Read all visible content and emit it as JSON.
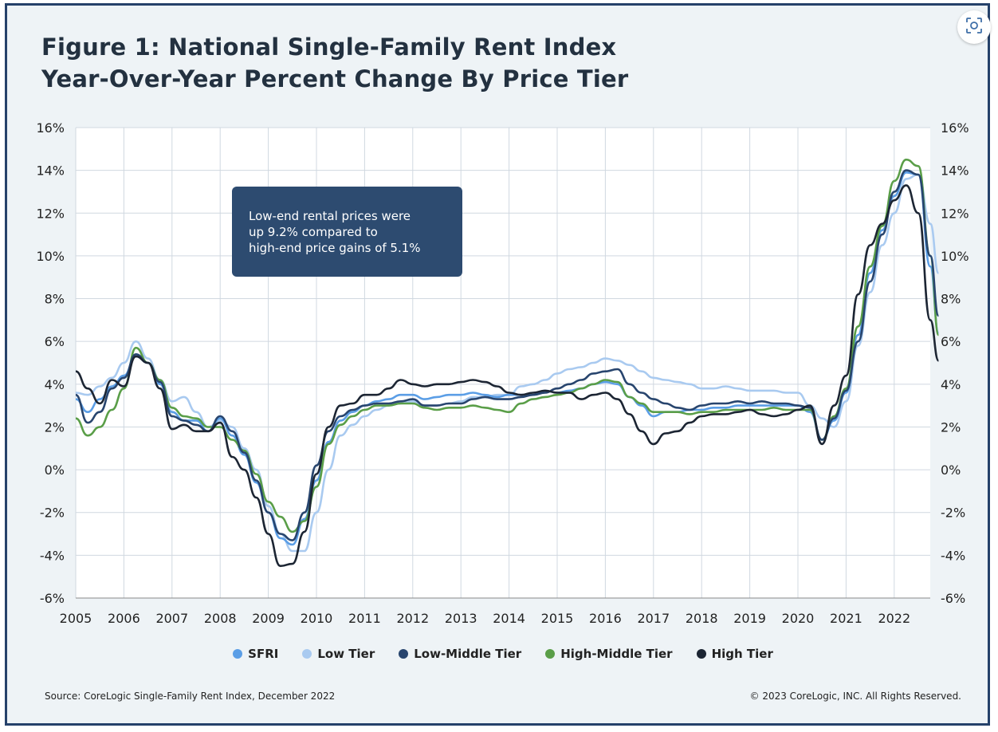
{
  "title": {
    "line1": "Figure 1: National Single-Family Rent Index",
    "line2": "Year-Over-Year Percent Change By Price Tier"
  },
  "annotation": {
    "line1": "Low-end rental prices were",
    "line2": "up 9.2% compared to",
    "line3": "high-end price gains of 5.1%"
  },
  "source": "Source: CoreLogic Single-Family Rent Index, December 2022",
  "copyright": "© 2023 CoreLogic, INC. All Rights Reserved.",
  "colors": {
    "frame_border": "#25416a",
    "background": "#eef3f6",
    "plot_bg": "#ffffff",
    "grid": "#d0d8e0",
    "annotation_bg": "#2d4b70"
  },
  "icons": {
    "lens": "search-lens-icon"
  },
  "chart_data": {
    "type": "line",
    "title": "Figure 1: National Single-Family Rent Index Year-Over-Year Percent Change By Price Tier",
    "xlabel": "",
    "ylabel": "",
    "xlim": [
      2005,
      2023
    ],
    "ylim": [
      -6,
      16
    ],
    "x_ticks": [
      "2005",
      "2006",
      "2007",
      "2008",
      "2009",
      "2010",
      "2011",
      "2012",
      "2013",
      "2014",
      "2015",
      "2016",
      "2017",
      "2018",
      "2019",
      "2020",
      "2021",
      "2022"
    ],
    "y_ticks": [
      "-6%",
      "-4%",
      "-2%",
      "0%",
      "2%",
      "4%",
      "6%",
      "8%",
      "10%",
      "12%",
      "14%",
      "16%"
    ],
    "y_tick_values": [
      -6,
      -4,
      -2,
      0,
      2,
      4,
      6,
      8,
      10,
      12,
      14,
      16
    ],
    "grid": true,
    "legend_position": "bottom",
    "series": [
      {
        "name": "SFRI",
        "color": "#5b9ee6",
        "x": [
          2005.0,
          2005.25,
          2005.5,
          2005.75,
          2006.0,
          2006.25,
          2006.5,
          2006.75,
          2007.0,
          2007.25,
          2007.5,
          2007.75,
          2008.0,
          2008.25,
          2008.5,
          2008.75,
          2009.0,
          2009.25,
          2009.5,
          2009.75,
          2010.0,
          2010.25,
          2010.5,
          2010.75,
          2011.0,
          2011.25,
          2011.5,
          2011.75,
          2012.0,
          2012.25,
          2012.5,
          2012.75,
          2013.0,
          2013.25,
          2013.5,
          2013.75,
          2014.0,
          2014.25,
          2014.5,
          2014.75,
          2015.0,
          2015.25,
          2015.5,
          2015.75,
          2016.0,
          2016.25,
          2016.5,
          2016.75,
          2017.0,
          2017.25,
          2017.5,
          2017.75,
          2018.0,
          2018.25,
          2018.5,
          2018.75,
          2019.0,
          2019.25,
          2019.5,
          2019.75,
          2020.0,
          2020.25,
          2020.5,
          2020.75,
          2021.0,
          2021.25,
          2021.5,
          2021.75,
          2022.0,
          2022.25,
          2022.5,
          2022.75,
          2022.92
        ],
        "values": [
          3.3,
          2.7,
          3.3,
          3.9,
          4.4,
          5.3,
          5.0,
          4.0,
          2.7,
          2.3,
          2.3,
          1.8,
          2.4,
          1.6,
          0.7,
          -0.6,
          -2.0,
          -3.2,
          -3.5,
          -2.3,
          -0.5,
          1.3,
          2.3,
          2.7,
          3.0,
          3.2,
          3.3,
          3.5,
          3.5,
          3.3,
          3.4,
          3.5,
          3.5,
          3.6,
          3.5,
          3.4,
          3.5,
          3.5,
          3.5,
          3.7,
          3.6,
          3.7,
          3.8,
          4.0,
          4.1,
          4.0,
          3.4,
          3.0,
          2.5,
          2.7,
          2.7,
          2.8,
          2.8,
          2.9,
          2.9,
          3.0,
          3.0,
          3.0,
          3.0,
          3.0,
          3.0,
          2.7,
          1.4,
          2.3,
          3.6,
          6.3,
          9.2,
          11.2,
          12.8,
          13.9,
          13.8,
          9.5,
          6.4
        ]
      },
      {
        "name": "Low Tier",
        "color": "#a9caf0",
        "x": [
          2005.0,
          2005.25,
          2005.5,
          2005.75,
          2006.0,
          2006.25,
          2006.5,
          2006.75,
          2007.0,
          2007.25,
          2007.5,
          2007.75,
          2008.0,
          2008.25,
          2008.5,
          2008.75,
          2009.0,
          2009.25,
          2009.5,
          2009.75,
          2010.0,
          2010.25,
          2010.5,
          2010.75,
          2011.0,
          2011.25,
          2011.5,
          2011.75,
          2012.0,
          2012.25,
          2012.5,
          2012.75,
          2013.0,
          2013.25,
          2013.5,
          2013.75,
          2014.0,
          2014.25,
          2014.5,
          2014.75,
          2015.0,
          2015.25,
          2015.5,
          2015.75,
          2016.0,
          2016.25,
          2016.5,
          2016.75,
          2017.0,
          2017.25,
          2017.5,
          2017.75,
          2018.0,
          2018.25,
          2018.5,
          2018.75,
          2019.0,
          2019.25,
          2019.5,
          2019.75,
          2020.0,
          2020.25,
          2020.5,
          2020.75,
          2021.0,
          2021.25,
          2021.5,
          2021.75,
          2022.0,
          2022.25,
          2022.5,
          2022.75,
          2022.92
        ],
        "values": [
          3.6,
          3.5,
          3.9,
          4.3,
          5.0,
          6.0,
          5.2,
          4.2,
          3.2,
          3.4,
          2.7,
          2.0,
          2.3,
          2.0,
          1.0,
          0.0,
          -1.7,
          -3.0,
          -3.8,
          -3.8,
          -2.0,
          0.0,
          1.6,
          2.1,
          2.5,
          2.8,
          3.0,
          3.1,
          3.2,
          3.0,
          3.0,
          3.1,
          3.2,
          3.4,
          3.4,
          3.5,
          3.5,
          3.9,
          4.0,
          4.2,
          4.5,
          4.7,
          4.8,
          5.0,
          5.2,
          5.1,
          4.9,
          4.6,
          4.3,
          4.2,
          4.1,
          4.0,
          3.8,
          3.8,
          3.9,
          3.8,
          3.7,
          3.7,
          3.7,
          3.6,
          3.6,
          3.0,
          2.4,
          2.0,
          3.2,
          5.8,
          8.3,
          10.5,
          12.0,
          13.6,
          13.8,
          11.5,
          9.2
        ]
      },
      {
        "name": "Low-Middle Tier",
        "color": "#28456e",
        "x": [
          2005.0,
          2005.25,
          2005.5,
          2005.75,
          2006.0,
          2006.25,
          2006.5,
          2006.75,
          2007.0,
          2007.25,
          2007.5,
          2007.75,
          2008.0,
          2008.25,
          2008.5,
          2008.75,
          2009.0,
          2009.25,
          2009.5,
          2009.75,
          2010.0,
          2010.25,
          2010.5,
          2010.75,
          2011.0,
          2011.25,
          2011.5,
          2011.75,
          2012.0,
          2012.25,
          2012.5,
          2012.75,
          2013.0,
          2013.25,
          2013.5,
          2013.75,
          2014.0,
          2014.25,
          2014.5,
          2014.75,
          2015.0,
          2015.25,
          2015.5,
          2015.75,
          2016.0,
          2016.25,
          2016.5,
          2016.75,
          2017.0,
          2017.25,
          2017.5,
          2017.75,
          2018.0,
          2018.25,
          2018.5,
          2018.75,
          2019.0,
          2019.25,
          2019.5,
          2019.75,
          2020.0,
          2020.25,
          2020.5,
          2020.75,
          2021.0,
          2021.25,
          2021.5,
          2021.75,
          2022.0,
          2022.25,
          2022.5,
          2022.75,
          2022.92
        ],
        "values": [
          3.5,
          2.2,
          2.7,
          3.8,
          4.3,
          5.4,
          5.0,
          4.1,
          2.5,
          2.3,
          2.1,
          1.8,
          2.5,
          1.8,
          0.8,
          -0.5,
          -2.0,
          -3.0,
          -3.3,
          -2.0,
          0.2,
          1.8,
          2.5,
          2.8,
          3.0,
          3.1,
          3.1,
          3.2,
          3.3,
          3.0,
          3.0,
          3.1,
          3.1,
          3.3,
          3.4,
          3.3,
          3.3,
          3.4,
          3.5,
          3.6,
          3.8,
          4.0,
          4.2,
          4.5,
          4.6,
          4.7,
          4.0,
          3.6,
          3.3,
          3.1,
          2.9,
          2.8,
          3.0,
          3.1,
          3.1,
          3.2,
          3.1,
          3.2,
          3.1,
          3.1,
          3.0,
          2.9,
          1.4,
          2.4,
          3.7,
          6.0,
          8.8,
          11.0,
          13.0,
          14.0,
          13.8,
          10.0,
          7.2
        ]
      },
      {
        "name": "High-Middle Tier",
        "color": "#5a9e48",
        "x": [
          2005.0,
          2005.25,
          2005.5,
          2005.75,
          2006.0,
          2006.25,
          2006.5,
          2006.75,
          2007.0,
          2007.25,
          2007.5,
          2007.75,
          2008.0,
          2008.25,
          2008.5,
          2008.75,
          2009.0,
          2009.25,
          2009.5,
          2009.75,
          2010.0,
          2010.25,
          2010.5,
          2010.75,
          2011.0,
          2011.25,
          2011.5,
          2011.75,
          2012.0,
          2012.25,
          2012.5,
          2012.75,
          2013.0,
          2013.25,
          2013.5,
          2013.75,
          2014.0,
          2014.25,
          2014.5,
          2014.75,
          2015.0,
          2015.25,
          2015.5,
          2015.75,
          2016.0,
          2016.25,
          2016.5,
          2016.75,
          2017.0,
          2017.25,
          2017.5,
          2017.75,
          2018.0,
          2018.25,
          2018.5,
          2018.75,
          2019.0,
          2019.25,
          2019.5,
          2019.75,
          2020.0,
          2020.25,
          2020.5,
          2020.75,
          2021.0,
          2021.25,
          2021.5,
          2021.75,
          2022.0,
          2022.25,
          2022.5,
          2022.75,
          2022.92
        ],
        "values": [
          2.4,
          1.6,
          2.0,
          2.8,
          3.8,
          5.7,
          5.0,
          4.2,
          2.9,
          2.5,
          2.4,
          2.0,
          2.0,
          1.4,
          0.9,
          -0.2,
          -1.5,
          -2.2,
          -2.9,
          -2.4,
          -0.8,
          1.2,
          2.1,
          2.5,
          2.8,
          3.0,
          3.0,
          3.1,
          3.1,
          2.9,
          2.8,
          2.9,
          2.9,
          3.0,
          2.9,
          2.8,
          2.7,
          3.1,
          3.3,
          3.4,
          3.5,
          3.6,
          3.8,
          4.0,
          4.2,
          4.1,
          3.4,
          3.1,
          2.7,
          2.7,
          2.7,
          2.6,
          2.7,
          2.7,
          2.8,
          2.8,
          2.8,
          2.8,
          2.9,
          2.8,
          2.8,
          2.8,
          1.4,
          2.5,
          3.8,
          6.7,
          9.5,
          11.4,
          13.5,
          14.5,
          14.2,
          10.0,
          6.3
        ]
      },
      {
        "name": "High Tier",
        "color": "#1c2533",
        "x": [
          2005.0,
          2005.25,
          2005.5,
          2005.75,
          2006.0,
          2006.25,
          2006.5,
          2006.75,
          2007.0,
          2007.25,
          2007.5,
          2007.75,
          2008.0,
          2008.25,
          2008.5,
          2008.75,
          2009.0,
          2009.25,
          2009.5,
          2009.75,
          2010.0,
          2010.25,
          2010.5,
          2010.75,
          2011.0,
          2011.25,
          2011.5,
          2011.75,
          2012.0,
          2012.25,
          2012.5,
          2012.75,
          2013.0,
          2013.25,
          2013.5,
          2013.75,
          2014.0,
          2014.25,
          2014.5,
          2014.75,
          2015.0,
          2015.25,
          2015.5,
          2015.75,
          2016.0,
          2016.25,
          2016.5,
          2016.75,
          2017.0,
          2017.25,
          2017.5,
          2017.75,
          2018.0,
          2018.25,
          2018.5,
          2018.75,
          2019.0,
          2019.25,
          2019.5,
          2019.75,
          2020.0,
          2020.25,
          2020.5,
          2020.75,
          2021.0,
          2021.25,
          2021.5,
          2021.75,
          2022.0,
          2022.25,
          2022.5,
          2022.75,
          2022.92
        ],
        "values": [
          4.6,
          3.8,
          3.1,
          4.2,
          3.9,
          5.3,
          5.0,
          3.8,
          1.9,
          2.1,
          1.8,
          1.8,
          2.2,
          0.6,
          0.0,
          -1.3,
          -3.0,
          -4.5,
          -4.4,
          -2.9,
          -0.2,
          2.0,
          3.0,
          3.1,
          3.5,
          3.5,
          3.8,
          4.2,
          4.0,
          3.9,
          4.0,
          4.0,
          4.1,
          4.2,
          4.1,
          3.9,
          3.6,
          3.5,
          3.6,
          3.7,
          3.6,
          3.6,
          3.3,
          3.5,
          3.6,
          3.3,
          2.6,
          1.8,
          1.2,
          1.7,
          1.8,
          2.2,
          2.5,
          2.6,
          2.6,
          2.7,
          2.8,
          2.6,
          2.5,
          2.6,
          2.8,
          3.0,
          1.2,
          3.0,
          4.4,
          8.2,
          10.5,
          11.5,
          12.6,
          13.3,
          12.0,
          7.0,
          5.1
        ]
      }
    ]
  }
}
